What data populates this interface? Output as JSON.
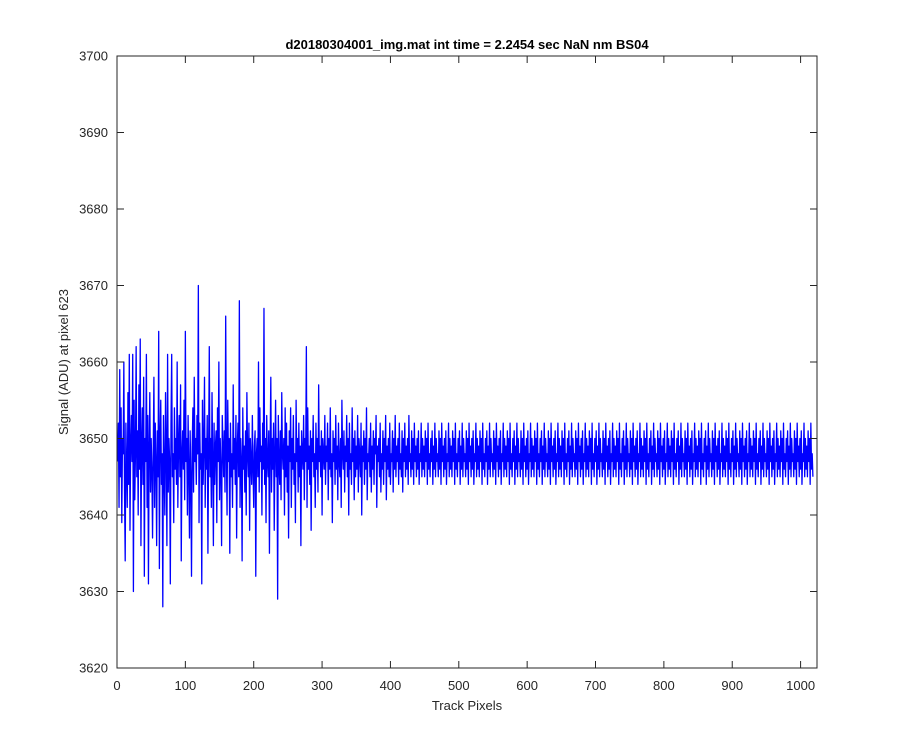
{
  "chart_data": {
    "type": "line",
    "title": "d20180304001_img.mat int time = 2.2454 sec  NaN nm BS04",
    "xlabel": "Track Pixels",
    "ylabel": "Signal (ADU) at pixel 623",
    "xlim": [
      0,
      1024
    ],
    "ylim": [
      3620,
      3700
    ],
    "xticks": [
      0,
      100,
      200,
      300,
      400,
      500,
      600,
      700,
      800,
      900,
      1000
    ],
    "yticks": [
      3620,
      3630,
      3640,
      3650,
      3660,
      3670,
      3680,
      3690,
      3700
    ],
    "grid": false,
    "legend": "none",
    "series": [
      {
        "color": "#0000ff",
        "x_start": 1,
        "x_step": 1,
        "values": [
          3647,
          3652,
          3641,
          3659,
          3645,
          3654,
          3639,
          3650,
          3648,
          3660,
          3643,
          3634,
          3652,
          3646,
          3641,
          3656,
          3644,
          3661,
          3638,
          3649,
          3653,
          3647,
          3661,
          3630,
          3655,
          3642,
          3648,
          3662,
          3645,
          3651,
          3640,
          3657,
          3646,
          3663,
          3636,
          3649,
          3654,
          3644,
          3658,
          3632,
          3650,
          3647,
          3661,
          3641,
          3653,
          3631,
          3649,
          3656,
          3643,
          3650,
          3646,
          3637,
          3648,
          3658,
          3641,
          3652,
          3647,
          3636,
          3651,
          3645,
          3664,
          3633,
          3650,
          3655,
          3644,
          3648,
          3628,
          3653,
          3646,
          3640,
          3656,
          3649,
          3636,
          3661,
          3643,
          3650,
          3647,
          3631,
          3652,
          3661,
          3645,
          3648,
          3639,
          3654,
          3646,
          3650,
          3644,
          3660,
          3641,
          3649,
          3653,
          3645,
          3657,
          3634,
          3648,
          3651,
          3646,
          3655,
          3642,
          3664,
          3647,
          3650,
          3640,
          3653,
          3646,
          3637,
          3651,
          3645,
          3632,
          3649,
          3654,
          3643,
          3658,
          3647,
          3650,
          3644,
          3653,
          3648,
          3670,
          3639,
          3652,
          3646,
          3648,
          3631,
          3655,
          3644,
          3649,
          3658,
          3641,
          3650,
          3646,
          3653,
          3635,
          3648,
          3662,
          3645,
          3650,
          3641,
          3656,
          3647,
          3636,
          3652,
          3644,
          3649,
          3651,
          3639,
          3654,
          3647,
          3660,
          3642,
          3650,
          3646,
          3636,
          3653,
          3649,
          3645,
          3651,
          3643,
          3666,
          3648,
          3640,
          3655,
          3647,
          3650,
          3635,
          3652,
          3645,
          3648,
          3641,
          3657,
          3646,
          3650,
          3644,
          3653,
          3637,
          3649,
          3652,
          3645,
          3668,
          3641,
          3650,
          3647,
          3634,
          3654,
          3646,
          3649,
          3643,
          3651,
          3640,
          3656,
          3648,
          3645,
          3652,
          3638,
          3650,
          3647,
          3644,
          3653,
          3646,
          3641,
          3649,
          3651,
          3632,
          3648,
          3650,
          3645,
          3660,
          3643,
          3654,
          3647,
          3649,
          3640,
          3652,
          3646,
          3667,
          3644,
          3650,
          3639,
          3653,
          3647,
          3645,
          3651,
          3635,
          3649,
          3658,
          3643,
          3650,
          3646,
          3652,
          3638,
          3648,
          3655,
          3645,
          3650,
          3629,
          3653,
          3647,
          3644,
          3651,
          3642,
          3656,
          3648,
          3646,
          3650,
          3640,
          3654,
          3645,
          3652,
          3643,
          3649,
          3637,
          3651,
          3647,
          3654,
          3641,
          3650,
          3646,
          3653,
          3644,
          3648,
          3639,
          3655,
          3647,
          3650,
          3643,
          3652,
          3645,
          3649,
          3636,
          3651,
          3648,
          3646,
          3653,
          3642,
          3650,
          3647,
          3662,
          3641,
          3654,
          3646,
          3649,
          3644,
          3651,
          3638,
          3650,
          3647,
          3653,
          3645,
          3648,
          3641,
          3652,
          3646,
          3650,
          3643,
          3657,
          3647,
          3649,
          3645,
          3651,
          3640,
          3650,
          3648,
          3646,
          3653,
          3644,
          3649,
          3647,
          3652,
          3642,
          3650,
          3646,
          3654,
          3645,
          3648,
          3639,
          3651,
          3647,
          3650,
          3644,
          3653,
          3646,
          3649,
          3642,
          3652,
          3647,
          3645,
          3650,
          3641,
          3655,
          3648,
          3646,
          3651,
          3643,
          3649,
          3647,
          3653,
          3645,
          3650,
          3640,
          3652,
          3646,
          3648,
          3644,
          3654,
          3647,
          3650,
          3642,
          3651,
          3645,
          3649,
          3646,
          3653,
          3643,
          3650,
          3648,
          3645,
          3652,
          3640,
          3649,
          3647,
          3651,
          3644,
          3650,
          3646,
          3654,
          3642,
          3648,
          3647,
          3650,
          3645,
          3652,
          3643,
          3649,
          3646,
          3651,
          3644,
          3650,
          3648,
          3653,
          3641,
          3649,
          3647,
          3650,
          3645,
          3652,
          3643,
          3648,
          3646,
          3651,
          3644,
          3650,
          3647,
          3653,
          3642,
          3649,
          3646,
          3650,
          3645,
          3652,
          3644,
          3648,
          3647,
          3651,
          3643,
          3650,
          3646,
          3653,
          3645,
          3649,
          3647,
          3650,
          3644,
          3652,
          3646,
          3648,
          3645,
          3651,
          3643,
          3650,
          3647,
          3652,
          3645,
          3649,
          3646,
          3650,
          3644,
          3653,
          3647,
          3648,
          3645,
          3651,
          3646,
          3650,
          3644,
          3652,
          3647,
          3649,
          3645,
          3650,
          3646,
          3651,
          3644,
          3648,
          3647,
          3652,
          3645,
          3650,
          3646,
          3649,
          3645,
          3651,
          3647,
          3650,
          3644,
          3652,
          3646,
          3648,
          3645,
          3650,
          3647,
          3651,
          3644,
          3649,
          3646,
          3652,
          3645,
          3650,
          3647,
          3648,
          3645,
          3651,
          3646,
          3650,
          3644,
          3652,
          3647,
          3649,
          3645,
          3650,
          3646,
          3651,
          3644,
          3648,
          3647,
          3652,
          3645,
          3650,
          3646,
          3649,
          3645,
          3651,
          3647,
          3650,
          3644,
          3652,
          3646,
          3648,
          3645,
          3650,
          3647,
          3651,
          3644,
          3649,
          3646,
          3652,
          3645,
          3650,
          3647,
          3648,
          3645,
          3651,
          3646,
          3650,
          3644,
          3652,
          3647,
          3649,
          3645,
          3650,
          3646,
          3651,
          3644,
          3648,
          3647,
          3652,
          3645,
          3650,
          3646,
          3649,
          3645,
          3651,
          3647,
          3650,
          3644,
          3652,
          3646,
          3648,
          3645,
          3650,
          3647,
          3651,
          3644,
          3649,
          3646,
          3652,
          3645,
          3650,
          3647,
          3648,
          3645,
          3651,
          3646,
          3650,
          3644,
          3652,
          3647,
          3649,
          3645,
          3650,
          3646,
          3651,
          3644,
          3648,
          3647,
          3652,
          3645,
          3650,
          3646,
          3649,
          3645,
          3651,
          3647,
          3650,
          3644,
          3652,
          3646,
          3648,
          3645,
          3650,
          3647,
          3651,
          3644,
          3649,
          3646,
          3652,
          3645,
          3650,
          3647,
          3648,
          3645,
          3651,
          3646,
          3650,
          3644,
          3652,
          3647,
          3649,
          3645,
          3650,
          3646,
          3651,
          3644,
          3648,
          3647,
          3652,
          3645,
          3650,
          3646,
          3649,
          3645,
          3651,
          3647,
          3650,
          3644,
          3652,
          3646,
          3648,
          3645,
          3650,
          3647,
          3651,
          3644,
          3649,
          3646,
          3652,
          3645,
          3650,
          3647,
          3648,
          3645,
          3651,
          3646,
          3650,
          3644,
          3652,
          3647,
          3649,
          3645,
          3650,
          3646,
          3651,
          3644,
          3648,
          3647,
          3652,
          3645,
          3650,
          3646,
          3649,
          3645,
          3651,
          3647,
          3650,
          3644,
          3652,
          3646,
          3648,
          3645,
          3650,
          3647,
          3651,
          3644,
          3649,
          3646,
          3652,
          3645,
          3650,
          3647,
          3648,
          3645,
          3651,
          3646,
          3650,
          3644,
          3652,
          3647,
          3649,
          3645,
          3650,
          3646,
          3651,
          3644,
          3648,
          3647,
          3652,
          3645,
          3650,
          3646,
          3649,
          3645,
          3651,
          3647,
          3650,
          3644,
          3652,
          3646,
          3648,
          3645,
          3650,
          3647,
          3651,
          3644,
          3649,
          3646,
          3652,
          3645,
          3650,
          3647,
          3648,
          3645,
          3651,
          3646,
          3650,
          3644,
          3652,
          3647,
          3649,
          3645,
          3650,
          3646,
          3651,
          3644,
          3648,
          3647,
          3652,
          3645,
          3650,
          3646,
          3649,
          3645,
          3651,
          3647,
          3650,
          3644,
          3652,
          3646,
          3648,
          3645,
          3650,
          3647,
          3651,
          3644,
          3649,
          3646,
          3652,
          3645,
          3650,
          3647,
          3648,
          3645,
          3651,
          3646,
          3650,
          3644,
          3652,
          3647,
          3649,
          3645,
          3650,
          3646,
          3651,
          3644,
          3648,
          3647,
          3652,
          3645,
          3650,
          3646,
          3649,
          3645,
          3651,
          3647,
          3650,
          3644,
          3652,
          3646,
          3648,
          3645,
          3650,
          3647,
          3651,
          3644,
          3649,
          3646,
          3652,
          3645,
          3650,
          3647,
          3648,
          3645,
          3651,
          3646,
          3650,
          3644,
          3652,
          3647,
          3649,
          3645,
          3650,
          3646,
          3651,
          3644,
          3648,
          3647,
          3652,
          3645,
          3650,
          3646,
          3649,
          3645,
          3651,
          3647,
          3650,
          3644,
          3652,
          3646,
          3648,
          3645,
          3650,
          3647,
          3651,
          3644,
          3649,
          3646,
          3652,
          3645,
          3650,
          3647,
          3648,
          3645,
          3651,
          3646,
          3650,
          3644,
          3652,
          3647,
          3649,
          3645,
          3650,
          3646,
          3651,
          3644,
          3648,
          3647,
          3652,
          3645,
          3650,
          3646,
          3649,
          3645,
          3651,
          3647,
          3650,
          3644,
          3652,
          3646,
          3648,
          3645,
          3650,
          3647,
          3651,
          3644,
          3649,
          3646,
          3652,
          3645,
          3650,
          3647,
          3648,
          3645,
          3651,
          3646,
          3650,
          3644,
          3652,
          3647,
          3649,
          3645,
          3650,
          3646,
          3651,
          3644,
          3648,
          3647,
          3652,
          3645,
          3650,
          3646,
          3649,
          3645,
          3651,
          3647,
          3650,
          3644,
          3652,
          3646,
          3648,
          3645,
          3650,
          3647,
          3651,
          3644,
          3649,
          3646,
          3652,
          3645,
          3650,
          3647,
          3648,
          3645,
          3651,
          3646,
          3650,
          3644,
          3652,
          3647,
          3649,
          3645,
          3650,
          3646,
          3651,
          3644,
          3648,
          3647,
          3652,
          3645,
          3650,
          3646,
          3649,
          3645,
          3651,
          3647,
          3650,
          3644,
          3652,
          3646,
          3648,
          3645,
          3650,
          3647,
          3651,
          3644,
          3649,
          3646,
          3652,
          3645,
          3650,
          3647,
          3648,
          3645,
          3651,
          3646,
          3650,
          3644,
          3652,
          3647,
          3649,
          3645,
          3650,
          3646,
          3651,
          3644,
          3648,
          3647,
          3652,
          3645,
          3650,
          3646,
          3649,
          3645,
          3651,
          3647,
          3650,
          3644,
          3652,
          3646,
          3648,
          3645,
          3650,
          3647,
          3651,
          3644,
          3649,
          3646,
          3652,
          3645,
          3650,
          3647,
          3648,
          3645,
          3651,
          3646,
          3650,
          3644,
          3652,
          3647,
          3649,
          3645,
          3650,
          3646,
          3651,
          3644,
          3648,
          3647,
          3652,
          3645,
          3650,
          3646,
          3649,
          3645,
          3651,
          3647,
          3650,
          3644,
          3652,
          3646,
          3648,
          3645
        ]
      }
    ]
  }
}
